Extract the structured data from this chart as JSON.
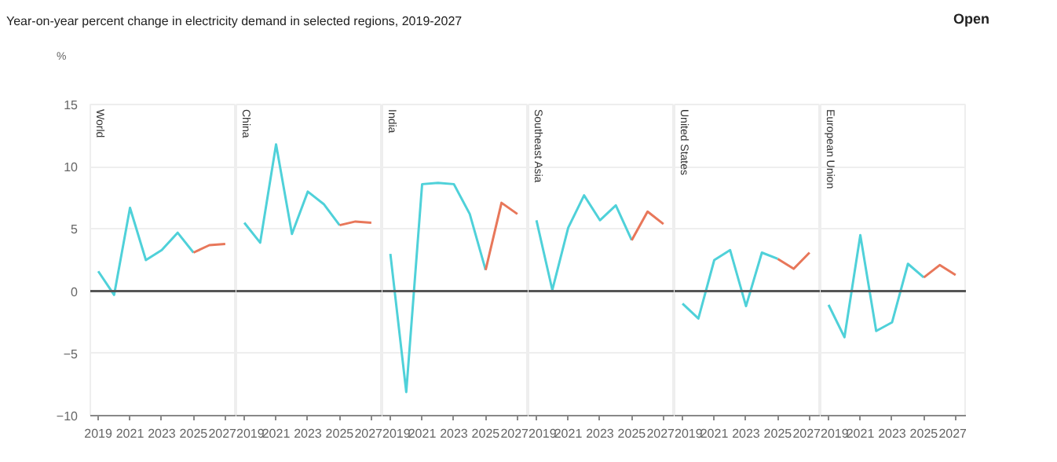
{
  "chart_data": [
    {
      "type": "line",
      "title": "Year-on-year percent change in electricity demand in selected regions, 2019-2027",
      "ylabel": "%",
      "annotations": [
        "World",
        "Open"
      ],
      "xlim": [
        2018.5,
        2027.7
      ],
      "xticks": [
        2019,
        2021,
        2023,
        2025,
        2027
      ],
      "ylim": [
        -10,
        15
      ],
      "yticks": [
        -10,
        -5,
        0,
        5,
        10,
        15
      ],
      "grid": "y",
      "ref_lines": [
        {
          "axis": "y",
          "value": 0,
          "color": "#555555"
        }
      ],
      "series": [
        {
          "color": "#4fd1d9",
          "x": [
            2019,
            2020,
            2021,
            2022,
            2023,
            2024,
            2025
          ],
          "values": [
            1.6,
            -0.3,
            6.7,
            2.5,
            3.3,
            4.7,
            3.1
          ]
        },
        {
          "color": "#e8775a",
          "x": [
            2025,
            2026,
            2027
          ],
          "values": [
            3.1,
            3.7,
            3.8
          ]
        }
      ]
    },
    {
      "type": "line",
      "annotations": [
        "China"
      ],
      "tick_labels": "x",
      "xlim": [
        2018.5,
        2027.7
      ],
      "xticks": [
        2019,
        2021,
        2023,
        2025,
        2027
      ],
      "ylim": [
        -10,
        15
      ],
      "yticks": [
        -10,
        -5,
        0,
        5,
        10,
        15
      ],
      "grid": "y",
      "ref_lines": [
        {
          "axis": "y",
          "value": 0,
          "color": "#555555"
        }
      ],
      "series": [
        {
          "color": "#4fd1d9",
          "x": [
            2019,
            2020,
            2021,
            2022,
            2023,
            2024,
            2025
          ],
          "values": [
            5.5,
            3.9,
            11.8,
            4.6,
            8.0,
            7.0,
            5.3
          ]
        },
        {
          "color": "#e8775a",
          "x": [
            2025,
            2026,
            2027
          ],
          "values": [
            5.3,
            5.6,
            5.5
          ]
        }
      ]
    },
    {
      "type": "line",
      "annotations": [
        "India"
      ],
      "tick_labels": "x",
      "xlim": [
        2018.5,
        2027.7
      ],
      "xticks": [
        2019,
        2021,
        2023,
        2025,
        2027
      ],
      "ylim": [
        -10,
        15
      ],
      "yticks": [
        -10,
        -5,
        0,
        5,
        10,
        15
      ],
      "grid": "y",
      "ref_lines": [
        {
          "axis": "y",
          "value": 0,
          "color": "#555555"
        }
      ],
      "series": [
        {
          "color": "#4fd1d9",
          "x": [
            2019,
            2020,
            2021,
            2022,
            2023,
            2024,
            2025
          ],
          "values": [
            3.0,
            -8.1,
            8.6,
            8.7,
            8.6,
            6.2,
            1.7
          ]
        },
        {
          "color": "#e8775a",
          "x": [
            2025,
            2026,
            2027
          ],
          "values": [
            1.7,
            7.1,
            6.2
          ]
        }
      ]
    },
    {
      "type": "line",
      "annotations": [
        "Southeast Asia"
      ],
      "tick_labels": "x",
      "xlim": [
        2018.5,
        2027.7
      ],
      "xticks": [
        2019,
        2021,
        2023,
        2025,
        2027
      ],
      "ylim": [
        -10,
        15
      ],
      "yticks": [
        -10,
        -5,
        0,
        5,
        10,
        15
      ],
      "grid": "y",
      "ref_lines": [
        {
          "axis": "y",
          "value": 0,
          "color": "#555555"
        }
      ],
      "series": [
        {
          "color": "#4fd1d9",
          "x": [
            2019,
            2020,
            2021,
            2022,
            2023,
            2024,
            2025
          ],
          "values": [
            5.7,
            0.1,
            5.1,
            7.7,
            5.7,
            6.9,
            4.1
          ]
        },
        {
          "color": "#e8775a",
          "x": [
            2025,
            2026,
            2027
          ],
          "values": [
            4.1,
            6.4,
            5.4
          ]
        }
      ]
    },
    {
      "type": "line",
      "annotations": [
        "United States"
      ],
      "tick_labels": "x",
      "xlim": [
        2018.5,
        2027.7
      ],
      "xticks": [
        2019,
        2021,
        2023,
        2025,
        2027
      ],
      "ylim": [
        -10,
        15
      ],
      "yticks": [
        -10,
        -5,
        0,
        5,
        10,
        15
      ],
      "grid": "y",
      "ref_lines": [
        {
          "axis": "y",
          "value": 0,
          "color": "#555555"
        }
      ],
      "series": [
        {
          "color": "#4fd1d9",
          "x": [
            2019,
            2020,
            2021,
            2022,
            2023,
            2024,
            2025
          ],
          "values": [
            -1.0,
            -2.2,
            2.5,
            3.3,
            -1.2,
            3.1,
            2.6
          ]
        },
        {
          "color": "#e8775a",
          "x": [
            2025,
            2026,
            2027
          ],
          "values": [
            2.6,
            1.8,
            3.1
          ]
        }
      ]
    },
    {
      "type": "line",
      "annotations": [
        "European Union"
      ],
      "tick_labels": "x",
      "xlim": [
        2018.5,
        2027.7
      ],
      "xticks": [
        2019,
        2021,
        2023,
        2025,
        2027
      ],
      "ylim": [
        -10,
        15
      ],
      "yticks": [
        -10,
        -5,
        0,
        5,
        10,
        15
      ],
      "grid": "y",
      "ref_lines": [
        {
          "axis": "y",
          "value": 0,
          "color": "#555555"
        }
      ],
      "series": [
        {
          "color": "#4fd1d9",
          "x": [
            2019,
            2020,
            2021,
            2022,
            2023,
            2024,
            2025
          ],
          "values": [
            -1.1,
            -3.7,
            4.5,
            -3.2,
            -2.5,
            2.2,
            1.1
          ]
        },
        {
          "color": "#e8775a",
          "x": [
            2025,
            2026,
            2027
          ],
          "values": [
            1.1,
            2.1,
            1.3
          ]
        }
      ]
    }
  ]
}
